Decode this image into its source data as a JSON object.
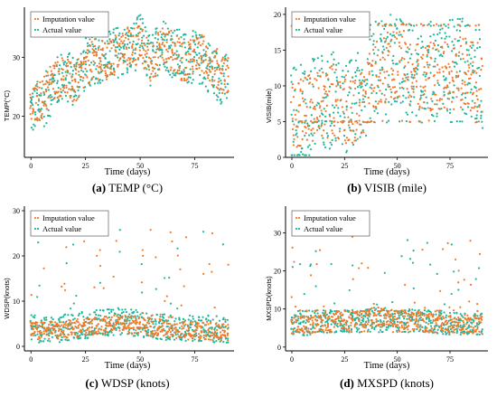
{
  "colors": {
    "imputation": "#f07a2a",
    "actual": "#1fb59a",
    "axis": "#000000",
    "legend_border": "#444444"
  },
  "chart_data": [
    {
      "type": "scatter",
      "caption": {
        "letter": "(a)",
        "text": " TEMP (°C)"
      },
      "xlabel": "Time (days)",
      "ylabel": "TEMP(°C)",
      "xlim": [
        -3,
        93
      ],
      "ylim": [
        13,
        38.5
      ],
      "xticks": [
        0,
        25,
        50,
        75
      ],
      "yticks": [
        20,
        30
      ],
      "legend": [
        "Imputation value",
        "Actual value"
      ],
      "series": [
        {
          "name": "Imputation value",
          "x": [
            0,
            5,
            10,
            15,
            20,
            25,
            30,
            35,
            40,
            45,
            50,
            55,
            60,
            65,
            70,
            75,
            80,
            85,
            90
          ],
          "y": [
            21,
            23,
            26,
            27,
            25,
            28,
            30,
            29,
            31,
            32,
            32,
            29,
            32,
            31,
            29,
            31,
            30,
            28,
            27
          ],
          "spread": 3.5
        },
        {
          "name": "Actual value",
          "x": [
            0,
            5,
            10,
            15,
            20,
            25,
            30,
            35,
            40,
            45,
            50,
            55,
            60,
            65,
            70,
            75,
            80,
            85,
            90
          ],
          "y": [
            21,
            22,
            25,
            27,
            26,
            29,
            30,
            30,
            31,
            31,
            33,
            29,
            33,
            31,
            30,
            30,
            29,
            27,
            26
          ],
          "spread": 4.5
        }
      ]
    },
    {
      "type": "scatter",
      "caption": {
        "letter": "(b)",
        "text": " VISIB (mile)"
      },
      "xlabel": "Time (days)",
      "ylabel": "VISIB(mile)",
      "xlim": [
        -3,
        93
      ],
      "ylim": [
        0,
        21
      ],
      "xticks": [
        0,
        25,
        50,
        75
      ],
      "yticks": [
        0,
        5,
        10,
        15,
        20
      ],
      "legend": [
        "Imputation value",
        "Actual value"
      ],
      "series": [
        {
          "name": "Imputation value",
          "x": [
            0,
            10,
            20,
            30,
            40,
            50,
            60,
            70,
            80,
            90
          ],
          "y": [
            6,
            7,
            8,
            6,
            12,
            13,
            12,
            11,
            12,
            11
          ],
          "spread": 5
        },
        {
          "name": "Actual value",
          "x": [
            0,
            10,
            20,
            30,
            40,
            50,
            60,
            70,
            80,
            90
          ],
          "y": [
            6,
            7,
            8,
            7,
            13,
            13,
            12,
            12,
            13,
            11
          ],
          "spread": 7
        }
      ],
      "bands": [
        18.5,
        5
      ]
    },
    {
      "type": "scatter",
      "caption": {
        "letter": "(c)",
        "text": " WDSP (knots)"
      },
      "xlabel": "Time (days)",
      "ylabel": "WDSP(knots)",
      "xlim": [
        -3,
        93
      ],
      "ylim": [
        -1,
        31
      ],
      "xticks": [
        0,
        25,
        50,
        75
      ],
      "yticks": [
        0,
        10,
        20,
        30
      ],
      "legend": [
        "Imputation value",
        "Actual value"
      ],
      "series": [
        {
          "name": "Imputation value",
          "x": [
            0,
            10,
            20,
            30,
            40,
            50,
            60,
            70,
            80,
            90
          ],
          "y": [
            3.5,
            3.5,
            4,
            4.5,
            5,
            4.5,
            4,
            3.5,
            3.5,
            3
          ],
          "spread": 2
        },
        {
          "name": "Actual value",
          "x": [
            0,
            10,
            20,
            30,
            40,
            50,
            60,
            70,
            80,
            90
          ],
          "y": [
            4,
            3.5,
            4.5,
            5,
            5.5,
            5,
            4.5,
            4,
            4,
            3.5
          ],
          "spread": 3
        }
      ]
    },
    {
      "type": "scatter",
      "caption": {
        "letter": "(d)",
        "text": " MXSPD (knots)"
      },
      "xlabel": "Time (days)",
      "ylabel": "MXSPD(knots)",
      "xlim": [
        -3,
        93
      ],
      "ylim": [
        -1,
        37
      ],
      "xticks": [
        0,
        25,
        50,
        75
      ],
      "yticks": [
        0,
        10,
        20,
        30
      ],
      "legend": [
        "Imputation value",
        "Actual value"
      ],
      "series": [
        {
          "name": "Imputation value",
          "x": [
            0,
            10,
            20,
            30,
            40,
            50,
            60,
            70,
            80,
            90
          ],
          "y": [
            6,
            6,
            7,
            7,
            8,
            7,
            7,
            6,
            6,
            6
          ],
          "spread": 2.5
        },
        {
          "name": "Actual value",
          "x": [
            0,
            10,
            20,
            30,
            40,
            50,
            60,
            70,
            80,
            90
          ],
          "y": [
            6,
            6,
            7,
            7,
            7.5,
            7,
            7,
            6.5,
            6,
            6
          ],
          "spread": 3
        }
      ],
      "bands": [
        9.5,
        4
      ]
    }
  ]
}
